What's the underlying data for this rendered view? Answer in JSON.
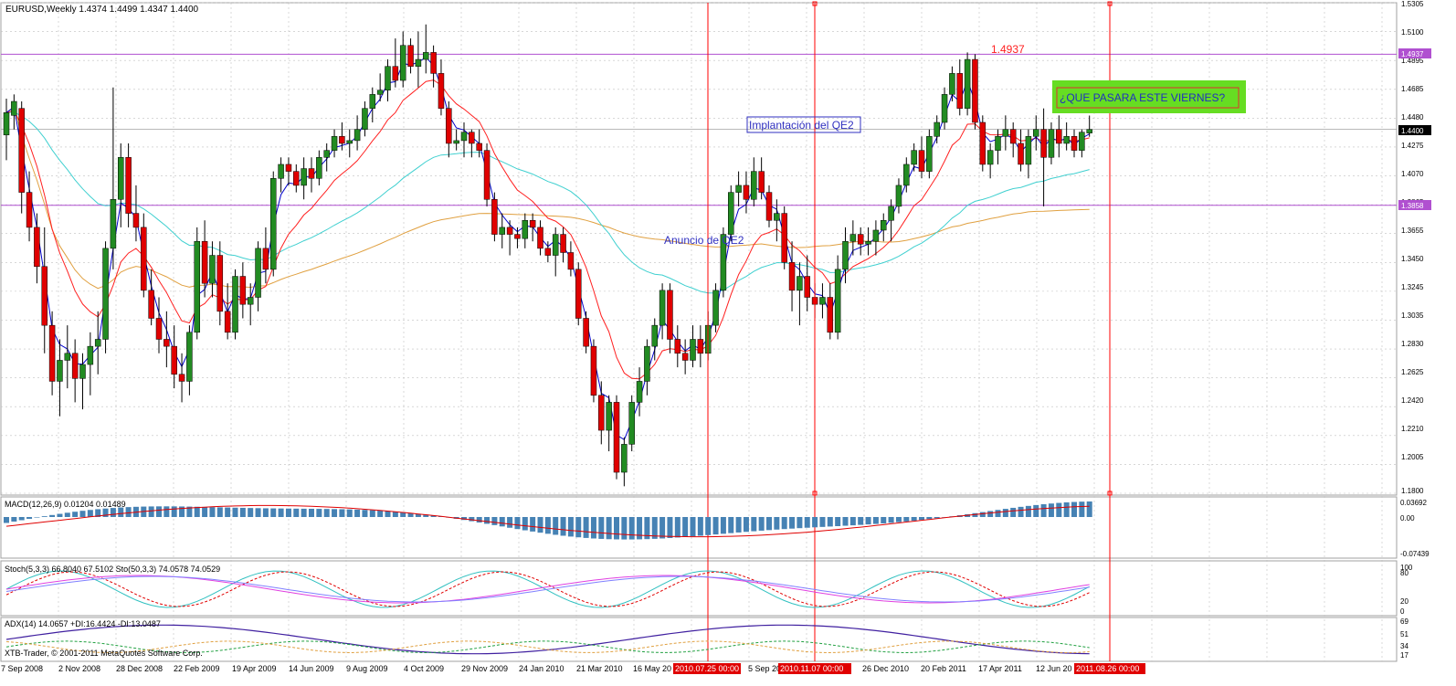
{
  "window": {
    "header": "EURUSD,Weekly  1.4374 1.4499 1.4347 1.4400",
    "copyright": "XTB-Trader, © 2001-2011 MetaQuotes Software Corp."
  },
  "price_axis": {
    "ticks": [
      "1.5305",
      "1.5100",
      "1.4895",
      "1.4685",
      "1.4480",
      "1.4275",
      "1.4070",
      "1.3865",
      "1.3655",
      "1.3450",
      "1.3245",
      "1.3035",
      "1.2830",
      "1.2625",
      "1.2420",
      "1.2210",
      "1.2005",
      "1.1800"
    ],
    "current_label": "1.4400",
    "level_high_label": "1.4937",
    "level_low_label": "1.3858"
  },
  "annotations": {
    "high": "1.4937",
    "question": "¿QUE PASARA ESTE VIERNES?",
    "qe2_implementation": "Implantación del QE2",
    "qe2_announcement": "Anuncio de QE2"
  },
  "time_axis": {
    "labels": [
      "7 Sep 2008",
      "2 Nov 2008",
      "28 Dec 2008",
      "22 Feb 2009",
      "19 Apr 2009",
      "14 Jun 2009",
      "9 Aug 2009",
      "4 Oct 2009",
      "29 Nov 2009",
      "24 Jan 2010",
      "21 Mar 2010",
      "16 May 20",
      "5 Sep 20",
      "26 Dec 2010",
      "20 Feb 2011",
      "17 Apr 2011",
      "12 Jun 20"
    ],
    "highlights": [
      "2010.07.25 00:00",
      "2010.11.07 00:00",
      "2011.08.26 00:00"
    ]
  },
  "macd": {
    "label": "MACD(12,26,9) 0.01204 0.01489",
    "ticks": [
      "0.03692",
      "0.00",
      "-0.07439"
    ]
  },
  "stoch": {
    "label": "Stoch(5,3,3) 66.8040 67.5102  Sto(50,3,3) 74.0578 74.0529",
    "ticks": [
      "100",
      "80",
      "20",
      "0"
    ]
  },
  "adx": {
    "label": "ADX(14) 14.0657 +DI:16.4424 -DI:13.0487",
    "ticks": [
      "69",
      "51",
      "34",
      "17"
    ]
  },
  "colors": {
    "bull": "#228b22",
    "bear": "#e00000",
    "ma_fast": "#0000cc",
    "ma_red": "#ff2020",
    "ma_cyan": "#40d0d0",
    "ma_orange": "#e0a040",
    "level": "#b050d0",
    "vline": "#ff0000",
    "histogram": "#4682b4",
    "note_bg": "#66dd22"
  },
  "chart_data": {
    "type": "candlestick",
    "symbol": "EURUSD",
    "timeframe": "Weekly",
    "ylim": [
      1.18,
      1.5305
    ],
    "candles": [
      [
        1.436,
        1.462,
        1.418,
        1.452
      ],
      [
        1.45,
        1.465,
        1.44,
        1.46
      ],
      [
        1.455,
        1.46,
        1.38,
        1.395
      ],
      [
        1.395,
        1.41,
        1.36,
        1.37
      ],
      [
        1.37,
        1.38,
        1.33,
        1.342
      ],
      [
        1.342,
        1.37,
        1.28,
        1.3
      ],
      [
        1.3,
        1.31,
        1.25,
        1.26
      ],
      [
        1.26,
        1.29,
        1.235,
        1.275
      ],
      [
        1.275,
        1.3,
        1.255,
        1.28
      ],
      [
        1.28,
        1.29,
        1.245,
        1.262
      ],
      [
        1.262,
        1.28,
        1.24,
        1.272
      ],
      [
        1.272,
        1.295,
        1.25,
        1.285
      ],
      [
        1.285,
        1.31,
        1.265,
        1.29
      ],
      [
        1.29,
        1.36,
        1.28,
        1.355
      ],
      [
        1.355,
        1.47,
        1.34,
        1.39
      ],
      [
        1.39,
        1.43,
        1.37,
        1.42
      ],
      [
        1.42,
        1.43,
        1.37,
        1.38
      ],
      [
        1.38,
        1.4,
        1.36,
        1.37
      ],
      [
        1.37,
        1.38,
        1.32,
        1.325
      ],
      [
        1.325,
        1.34,
        1.3,
        1.305
      ],
      [
        1.305,
        1.32,
        1.28,
        1.29
      ],
      [
        1.29,
        1.31,
        1.27,
        1.285
      ],
      [
        1.285,
        1.3,
        1.255,
        1.265
      ],
      [
        1.265,
        1.28,
        1.245,
        1.26
      ],
      [
        1.26,
        1.3,
        1.25,
        1.295
      ],
      [
        1.295,
        1.37,
        1.29,
        1.36
      ],
      [
        1.36,
        1.375,
        1.32,
        1.33
      ],
      [
        1.33,
        1.36,
        1.32,
        1.35
      ],
      [
        1.35,
        1.36,
        1.3,
        1.31
      ],
      [
        1.31,
        1.33,
        1.29,
        1.295
      ],
      [
        1.295,
        1.34,
        1.29,
        1.335
      ],
      [
        1.335,
        1.345,
        1.305,
        1.315
      ],
      [
        1.315,
        1.33,
        1.3,
        1.32
      ],
      [
        1.32,
        1.36,
        1.31,
        1.355
      ],
      [
        1.355,
        1.37,
        1.33,
        1.34
      ],
      [
        1.34,
        1.41,
        1.335,
        1.405
      ],
      [
        1.405,
        1.42,
        1.395,
        1.415
      ],
      [
        1.415,
        1.42,
        1.4,
        1.41
      ],
      [
        1.41,
        1.415,
        1.395,
        1.4
      ],
      [
        1.4,
        1.42,
        1.39,
        1.412
      ],
      [
        1.412,
        1.42,
        1.395,
        1.405
      ],
      [
        1.405,
        1.425,
        1.4,
        1.42
      ],
      [
        1.42,
        1.43,
        1.41,
        1.425
      ],
      [
        1.425,
        1.44,
        1.42,
        1.435
      ],
      [
        1.435,
        1.445,
        1.425,
        1.43
      ],
      [
        1.43,
        1.44,
        1.42,
        1.432
      ],
      [
        1.432,
        1.45,
        1.425,
        1.44
      ],
      [
        1.44,
        1.46,
        1.435,
        1.455
      ],
      [
        1.455,
        1.47,
        1.445,
        1.465
      ],
      [
        1.465,
        1.48,
        1.46,
        1.468
      ],
      [
        1.468,
        1.49,
        1.46,
        1.485
      ],
      [
        1.485,
        1.505,
        1.47,
        1.475
      ],
      [
        1.475,
        1.51,
        1.47,
        1.5
      ],
      [
        1.5,
        1.505,
        1.48,
        1.485
      ],
      [
        1.485,
        1.51,
        1.47,
        1.49
      ],
      [
        1.49,
        1.515,
        1.48,
        1.495
      ],
      [
        1.495,
        1.5,
        1.47,
        1.48
      ],
      [
        1.48,
        1.49,
        1.45,
        1.455
      ],
      [
        1.455,
        1.46,
        1.42,
        1.43
      ],
      [
        1.43,
        1.44,
        1.425,
        1.432
      ],
      [
        1.432,
        1.445,
        1.42,
        1.438
      ],
      [
        1.438,
        1.44,
        1.42,
        1.43
      ],
      [
        1.43,
        1.44,
        1.42,
        1.425
      ],
      [
        1.425,
        1.43,
        1.385,
        1.39
      ],
      [
        1.39,
        1.395,
        1.36,
        1.365
      ],
      [
        1.365,
        1.38,
        1.355,
        1.37
      ],
      [
        1.37,
        1.375,
        1.35,
        1.365
      ],
      [
        1.365,
        1.37,
        1.355,
        1.362
      ],
      [
        1.362,
        1.38,
        1.355,
        1.375
      ],
      [
        1.375,
        1.38,
        1.36,
        1.37
      ],
      [
        1.37,
        1.375,
        1.35,
        1.355
      ],
      [
        1.355,
        1.36,
        1.345,
        1.35
      ],
      [
        1.35,
        1.37,
        1.335,
        1.365
      ],
      [
        1.365,
        1.37,
        1.345,
        1.352
      ],
      [
        1.352,
        1.36,
        1.335,
        1.34
      ],
      [
        1.34,
        1.345,
        1.3,
        1.305
      ],
      [
        1.305,
        1.31,
        1.28,
        1.285
      ],
      [
        1.285,
        1.29,
        1.245,
        1.25
      ],
      [
        1.25,
        1.26,
        1.215,
        1.225
      ],
      [
        1.225,
        1.25,
        1.21,
        1.245
      ],
      [
        1.245,
        1.25,
        1.19,
        1.195
      ],
      [
        1.195,
        1.22,
        1.185,
        1.215
      ],
      [
        1.215,
        1.25,
        1.21,
        1.245
      ],
      [
        1.245,
        1.27,
        1.235,
        1.26
      ],
      [
        1.26,
        1.29,
        1.25,
        1.285
      ],
      [
        1.285,
        1.305,
        1.275,
        1.3
      ],
      [
        1.3,
        1.33,
        1.29,
        1.325
      ],
      [
        1.325,
        1.33,
        1.28,
        1.29
      ],
      [
        1.29,
        1.3,
        1.27,
        1.28
      ],
      [
        1.28,
        1.29,
        1.265,
        1.275
      ],
      [
        1.275,
        1.3,
        1.27,
        1.29
      ],
      [
        1.29,
        1.3,
        1.27,
        1.28
      ],
      [
        1.28,
        1.31,
        1.275,
        1.3
      ],
      [
        1.3,
        1.33,
        1.295,
        1.325
      ],
      [
        1.325,
        1.37,
        1.32,
        1.365
      ],
      [
        1.365,
        1.4,
        1.36,
        1.395
      ],
      [
        1.395,
        1.41,
        1.385,
        1.4
      ],
      [
        1.4,
        1.41,
        1.38,
        1.39
      ],
      [
        1.39,
        1.42,
        1.385,
        1.41
      ],
      [
        1.41,
        1.42,
        1.39,
        1.395
      ],
      [
        1.395,
        1.4,
        1.37,
        1.375
      ],
      [
        1.375,
        1.39,
        1.36,
        1.38
      ],
      [
        1.38,
        1.385,
        1.34,
        1.345
      ],
      [
        1.345,
        1.36,
        1.31,
        1.325
      ],
      [
        1.325,
        1.345,
        1.3,
        1.335
      ],
      [
        1.335,
        1.35,
        1.31,
        1.32
      ],
      [
        1.32,
        1.33,
        1.305,
        1.315
      ],
      [
        1.315,
        1.33,
        1.305,
        1.32
      ],
      [
        1.32,
        1.33,
        1.29,
        1.295
      ],
      [
        1.295,
        1.35,
        1.29,
        1.34
      ],
      [
        1.34,
        1.37,
        1.33,
        1.36
      ],
      [
        1.36,
        1.375,
        1.35,
        1.365
      ],
      [
        1.365,
        1.37,
        1.35,
        1.358
      ],
      [
        1.358,
        1.37,
        1.35,
        1.36
      ],
      [
        1.36,
        1.375,
        1.35,
        1.368
      ],
      [
        1.368,
        1.38,
        1.36,
        1.375
      ],
      [
        1.375,
        1.39,
        1.36,
        1.385
      ],
      [
        1.385,
        1.405,
        1.38,
        1.4
      ],
      [
        1.4,
        1.42,
        1.395,
        1.415
      ],
      [
        1.415,
        1.43,
        1.41,
        1.425
      ],
      [
        1.425,
        1.435,
        1.405,
        1.41
      ],
      [
        1.41,
        1.44,
        1.405,
        1.435
      ],
      [
        1.435,
        1.45,
        1.43,
        1.445
      ],
      [
        1.445,
        1.47,
        1.44,
        1.465
      ],
      [
        1.465,
        1.485,
        1.46,
        1.48
      ],
      [
        1.48,
        1.49,
        1.45,
        1.455
      ],
      [
        1.455,
        1.495,
        1.45,
        1.49
      ],
      [
        1.49,
        1.4937,
        1.44,
        1.445
      ],
      [
        1.445,
        1.45,
        1.41,
        1.415
      ],
      [
        1.415,
        1.43,
        1.405,
        1.425
      ],
      [
        1.425,
        1.44,
        1.415,
        1.435
      ],
      [
        1.435,
        1.45,
        1.425,
        1.44
      ],
      [
        1.44,
        1.445,
        1.42,
        1.43
      ],
      [
        1.43,
        1.44,
        1.41,
        1.415
      ],
      [
        1.415,
        1.44,
        1.405,
        1.435
      ],
      [
        1.435,
        1.45,
        1.425,
        1.44
      ],
      [
        1.44,
        1.455,
        1.385,
        1.42
      ],
      [
        1.42,
        1.445,
        1.415,
        1.44
      ],
      [
        1.44,
        1.45,
        1.42,
        1.43
      ],
      [
        1.43,
        1.445,
        1.425,
        1.435
      ],
      [
        1.435,
        1.44,
        1.42,
        1.425
      ],
      [
        1.425,
        1.44,
        1.42,
        1.438
      ],
      [
        1.4374,
        1.4499,
        1.4347,
        1.44
      ]
    ]
  }
}
